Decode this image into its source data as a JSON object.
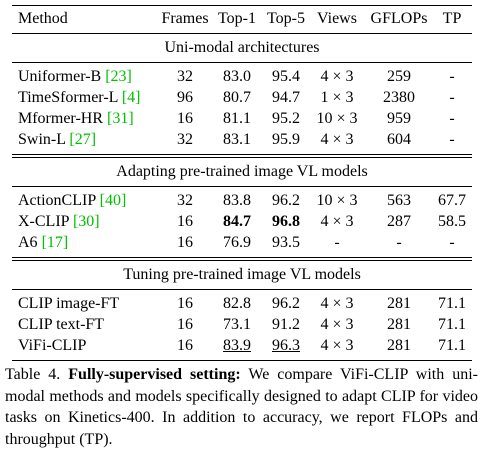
{
  "table": {
    "header": [
      "Method",
      "Frames",
      "Top-1",
      "Top-5",
      "Views",
      "GFLOPs",
      "TP"
    ],
    "sections": [
      {
        "title": "Uni-modal architectures",
        "rows": [
          {
            "method": "Uniformer-B",
            "cite": "[23]",
            "cells": [
              "32",
              "83.0",
              "95.4",
              "4 × 3",
              "259",
              "-"
            ]
          },
          {
            "method": "TimeSformer-L",
            "cite": "[4]",
            "cells": [
              "96",
              "80.7",
              "94.7",
              "1 × 3",
              "2380",
              "-"
            ]
          },
          {
            "method": "Mformer-HR",
            "cite": "[31]",
            "cells": [
              "16",
              "81.1",
              "95.2",
              "10 × 3",
              "959",
              "-"
            ]
          },
          {
            "method": "Swin-L",
            "cite": "[27]",
            "cells": [
              "32",
              "83.1",
              "95.9",
              "4 × 3",
              "604",
              "-"
            ]
          }
        ]
      },
      {
        "title": "Adapting pre-trained image VL models",
        "rows": [
          {
            "method": "ActionCLIP",
            "cite": "[40]",
            "cells": [
              "32",
              "83.8",
              "96.2",
              "10 × 3",
              "563",
              "67.7"
            ]
          },
          {
            "method": "X-CLIP",
            "cite": "[30]",
            "cells": [
              "16",
              "84.7",
              "96.8",
              "4 × 3",
              "287",
              "58.5"
            ],
            "bold": [
              1,
              2
            ]
          },
          {
            "method": "A6",
            "cite": "[17]",
            "cells": [
              "16",
              "76.9",
              "93.5",
              "-",
              "-",
              "-"
            ]
          }
        ]
      },
      {
        "title": "Tuning pre-trained image VL models",
        "rows": [
          {
            "method": "CLIP image-FT",
            "cells": [
              "16",
              "82.8",
              "96.2",
              "4 × 3",
              "281",
              "71.1"
            ]
          },
          {
            "method": "CLIP text-FT",
            "cells": [
              "16",
              "73.1",
              "91.2",
              "4 × 3",
              "281",
              "71.1"
            ]
          },
          {
            "method": "ViFi-CLIP",
            "cells": [
              "16",
              "83.9",
              "96.3",
              "4 × 3",
              "281",
              "71.1"
            ],
            "underline": [
              1,
              2
            ]
          }
        ]
      }
    ]
  },
  "caption": {
    "label": "Table 4.",
    "heading": "Fully-supervised setting:",
    "text": "We compare ViFi-CLIP with uni-modal methods and models specifically designed to adapt CLIP for video tasks on Kinetics-400. In addition to accuracy, we report FLOPs and throughput (TP)."
  }
}
